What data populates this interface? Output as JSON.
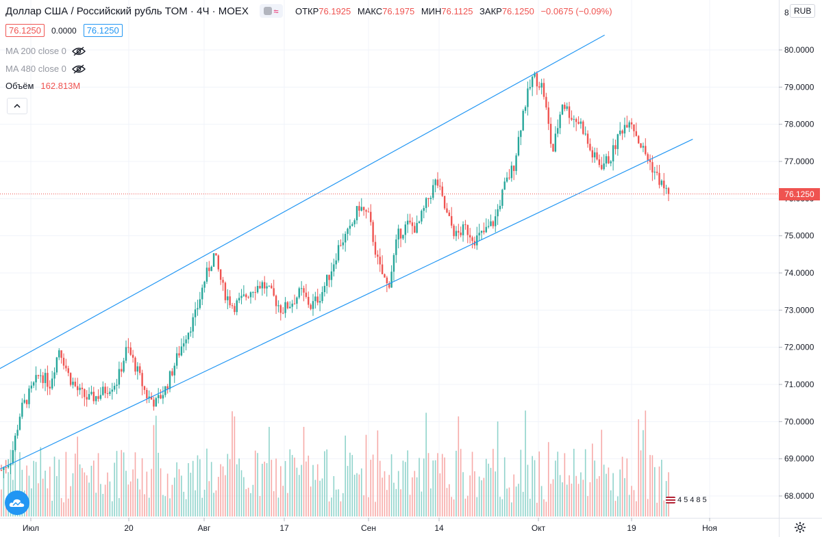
{
  "header": {
    "symbol_title": "Доллар США / Российский рубль TOM · 4Ч · MOEX",
    "ohlc": {
      "open_label": "ОТКР",
      "open": "76.1925",
      "high_label": "МАКС",
      "high": "76.1975",
      "low_label": "МИН",
      "low": "76.1125",
      "close_label": "ЗАКР",
      "close": "76.1250",
      "change": "−0.0675 (−0.09%)"
    },
    "bid": "76.1250",
    "spread": "0.0000",
    "ask": "76.1250",
    "currency": "RUB"
  },
  "indicators": [
    {
      "label": "MA 200 close 0"
    },
    {
      "label": "MA 480 close 0"
    }
  ],
  "volume": {
    "label": "Объём",
    "value": "162.813M"
  },
  "price_axis": {
    "ticks": [
      "80.0000",
      "79.0000",
      "78.0000",
      "77.0000",
      "76.0000",
      "75.0000",
      "74.0000",
      "73.0000",
      "72.0000",
      "71.0000",
      "70.0000",
      "69.0000",
      "68.0000"
    ],
    "last_price": "76.1250"
  },
  "time_axis": {
    "ticks": [
      "Июл",
      "20",
      "Авг",
      "17",
      "Сен",
      "14",
      "Окт",
      "19",
      "Ноя"
    ]
  },
  "counter": {
    "digits": "45485"
  },
  "colors": {
    "up": "#26a69a",
    "down": "#ef5350",
    "channel": "#2196f3",
    "vol_up": "#8fd3cb",
    "vol_down": "#f7a9a7"
  },
  "chart_data": {
    "type": "candlestick",
    "ylim": [
      67.6,
      81.3
    ],
    "grid": true,
    "price_path": [
      [
        0,
        68.7
      ],
      [
        1,
        69.0
      ],
      [
        2,
        70.3
      ],
      [
        3,
        70.8
      ],
      [
        4,
        71.3
      ],
      [
        5,
        71.0
      ],
      [
        6,
        72.0
      ],
      [
        7,
        71.2
      ],
      [
        8,
        70.8
      ],
      [
        9,
        70.6
      ],
      [
        10,
        70.7
      ],
      [
        11,
        70.9
      ],
      [
        12,
        71.1
      ],
      [
        13,
        72.0
      ],
      [
        14,
        71.4
      ],
      [
        15,
        70.7
      ],
      [
        16,
        70.5
      ],
      [
        17,
        70.9
      ],
      [
        18,
        71.6
      ],
      [
        19,
        72.3
      ],
      [
        20,
        72.8
      ],
      [
        21,
        73.8
      ],
      [
        22,
        74.5
      ],
      [
        23,
        73.5
      ],
      [
        24,
        73.1
      ],
      [
        25,
        73.3
      ],
      [
        26,
        73.6
      ],
      [
        27,
        73.7
      ],
      [
        28,
        73.4
      ],
      [
        29,
        73.0
      ],
      [
        30,
        73.2
      ],
      [
        31,
        73.5
      ],
      [
        32,
        73.1
      ],
      [
        33,
        73.4
      ],
      [
        34,
        74.0
      ],
      [
        35,
        74.8
      ],
      [
        36,
        75.1
      ],
      [
        37,
        75.8
      ],
      [
        38,
        75.5
      ],
      [
        39,
        74.2
      ],
      [
        40,
        73.6
      ],
      [
        41,
        75.0
      ],
      [
        42,
        75.3
      ],
      [
        43,
        75.2
      ],
      [
        44,
        75.9
      ],
      [
        45,
        76.5
      ],
      [
        46,
        75.6
      ],
      [
        47,
        75.0
      ],
      [
        48,
        75.2
      ],
      [
        49,
        74.9
      ],
      [
        50,
        75.1
      ],
      [
        51,
        75.4
      ],
      [
        52,
        76.3
      ],
      [
        53,
        76.9
      ],
      [
        54,
        78.4
      ],
      [
        55,
        79.3
      ],
      [
        56,
        79.0
      ],
      [
        57,
        77.2
      ],
      [
        58,
        78.6
      ],
      [
        59,
        78.2
      ],
      [
        60,
        78.0
      ],
      [
        61,
        77.2
      ],
      [
        62,
        76.9
      ],
      [
        63,
        77.1
      ],
      [
        64,
        77.8
      ],
      [
        65,
        78.2
      ],
      [
        66,
        77.5
      ],
      [
        67,
        77.0
      ],
      [
        68,
        76.5
      ],
      [
        69,
        76.1
      ]
    ],
    "channel_upper": [
      [
        -0.2,
        71.4
      ],
      [
        62.4,
        80.4
      ]
    ],
    "channel_lower": [
      [
        -0.2,
        68.7
      ],
      [
        71.5,
        77.6
      ]
    ],
    "last_price": 76.125
  }
}
